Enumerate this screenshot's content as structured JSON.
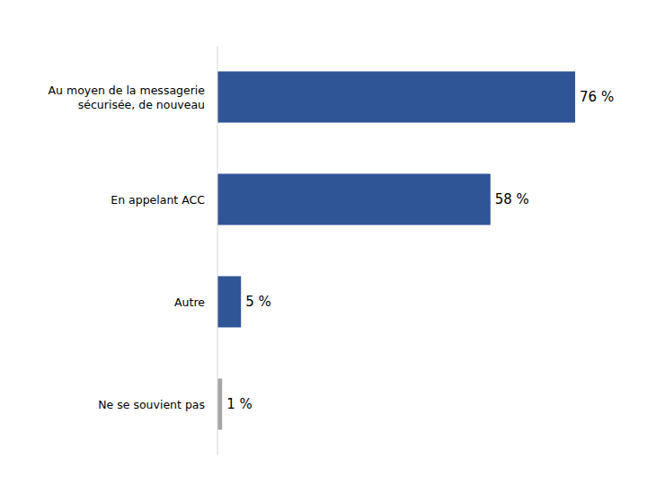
{
  "chart_data": {
    "type": "bar",
    "orientation": "horizontal",
    "categories": [
      "Au moyen de la messagerie sécurisée, de nouveau",
      "En appelant ACC",
      "Autre",
      "Ne se souvient pas"
    ],
    "values": [
      76,
      58,
      5,
      1
    ],
    "value_labels": [
      "76 %",
      "58 %",
      "5 %",
      "1 %"
    ],
    "colors": [
      "#2F5597",
      "#2F5597",
      "#2F5597",
      "#A6A6A6"
    ],
    "xlim": [
      0,
      80
    ],
    "data_labels": true,
    "grid": false,
    "tick_labels": "y"
  }
}
